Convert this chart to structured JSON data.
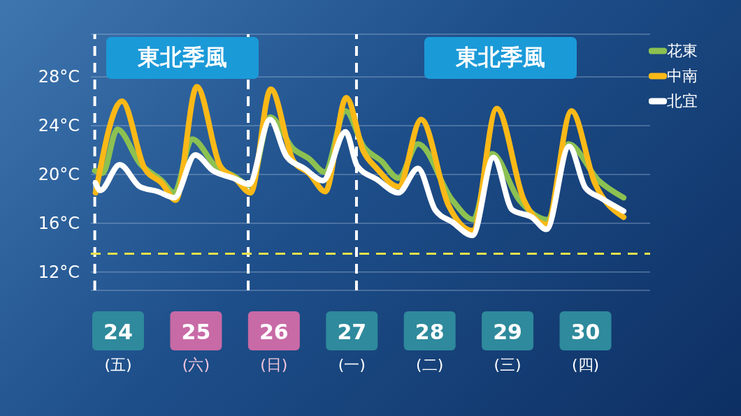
{
  "chart_data": {
    "type": "line",
    "xlim": [
      23.65,
      30.83
    ],
    "xticks": [
      {
        "value": 24,
        "label": "24\n(五)"
      },
      {
        "value": 25,
        "label": "25\n(六)"
      },
      {
        "value": 26,
        "label": "26\n(日)"
      },
      {
        "value": 27,
        "label": "27\n(一)"
      },
      {
        "value": 28,
        "label": "28\n(二)"
      },
      {
        "value": 29,
        "label": "29\n(三)"
      },
      {
        "value": 30,
        "label": "30\n(四)"
      }
    ],
    "ylim": [
      10.5,
      31.5
    ],
    "yticks": [
      {
        "value": 12,
        "label": "12°C"
      },
      {
        "value": 16,
        "label": "16°C"
      },
      {
        "value": 20,
        "label": "20°C"
      },
      {
        "value": 24,
        "label": "24°C"
      },
      {
        "value": 28,
        "label": "28°C"
      }
    ],
    "grid": "y",
    "legend": "top right",
    "line_style": "solid",
    "series": [
      {
        "name": "花東",
        "color": "#8cc152",
        "x": [
          23.7,
          23.8,
          23.99,
          24.28,
          24.56,
          24.72,
          24.95,
          25.25,
          25.48,
          25.7,
          25.95,
          26.25,
          26.45,
          26.65,
          26.92,
          27.15,
          27.38,
          27.6,
          27.85,
          28.29,
          28.56,
          28.8,
          29.15,
          29.52,
          29.78,
          30.17,
          30.49
        ],
        "values": [
          20.3,
          20.1,
          23.7,
          20.9,
          19.5,
          18.5,
          22.9,
          20.7,
          19.9,
          19.1,
          24.7,
          22.1,
          21.3,
          20.2,
          25.2,
          22.3,
          21.1,
          19.7,
          22.5,
          17.9,
          16.3,
          21.7,
          17.9,
          16.3,
          22.5,
          19.5,
          18.1
        ]
      },
      {
        "name": "中南",
        "color": "#fbb917",
        "x": [
          23.71,
          24.05,
          24.34,
          24.56,
          24.74,
          25.01,
          25.31,
          25.5,
          25.7,
          25.96,
          26.25,
          26.45,
          26.66,
          26.93,
          27.15,
          27.32,
          27.6,
          27.89,
          28.24,
          28.55,
          28.86,
          29.21,
          29.5,
          29.82,
          30.12,
          30.49
        ],
        "values": [
          18.5,
          26.0,
          20.5,
          19.3,
          17.9,
          27.2,
          20.7,
          19.7,
          18.5,
          27.0,
          21.1,
          20.1,
          18.6,
          26.3,
          21.9,
          20.5,
          19.0,
          24.5,
          17.5,
          15.4,
          25.4,
          17.9,
          15.9,
          25.2,
          19.3,
          16.5
        ]
      },
      {
        "name": "北宜",
        "color": "#ffffff",
        "x": [
          23.71,
          23.77,
          24.02,
          24.28,
          24.51,
          24.72,
          24.99,
          25.22,
          25.48,
          25.68,
          25.95,
          26.16,
          26.39,
          26.63,
          26.92,
          27.07,
          27.32,
          27.6,
          27.85,
          28.07,
          28.29,
          28.55,
          28.82,
          29.06,
          29.31,
          29.5,
          29.79,
          30.0,
          30.19,
          30.49
        ],
        "values": [
          19.3,
          18.7,
          20.8,
          19.0,
          18.6,
          18.1,
          21.6,
          20.3,
          19.7,
          19.2,
          24.5,
          21.5,
          20.5,
          19.5,
          23.5,
          20.7,
          19.6,
          18.5,
          20.5,
          17.1,
          16.1,
          15.0,
          21.4,
          17.1,
          16.5,
          15.5,
          22.3,
          18.9,
          18.1,
          17.0
        ]
      }
    ],
    "ref_lines": [
      {
        "axis": "x",
        "value": 23.7,
        "label": null,
        "color": "#ffffff",
        "line_style": "dashed"
      },
      {
        "axis": "x",
        "value": 25.67,
        "label": null,
        "color": "#ffffff",
        "line_style": "dashed"
      },
      {
        "axis": "x",
        "value": 27.06,
        "label": null,
        "color": "#ffffff",
        "line_style": "dashed"
      },
      {
        "axis": "y",
        "value": 13.5,
        "label": null,
        "color": "#e6e14a",
        "line_style": "dashed"
      }
    ],
    "annotations": [
      "東北季風",
      "東北季風"
    ]
  }
}
